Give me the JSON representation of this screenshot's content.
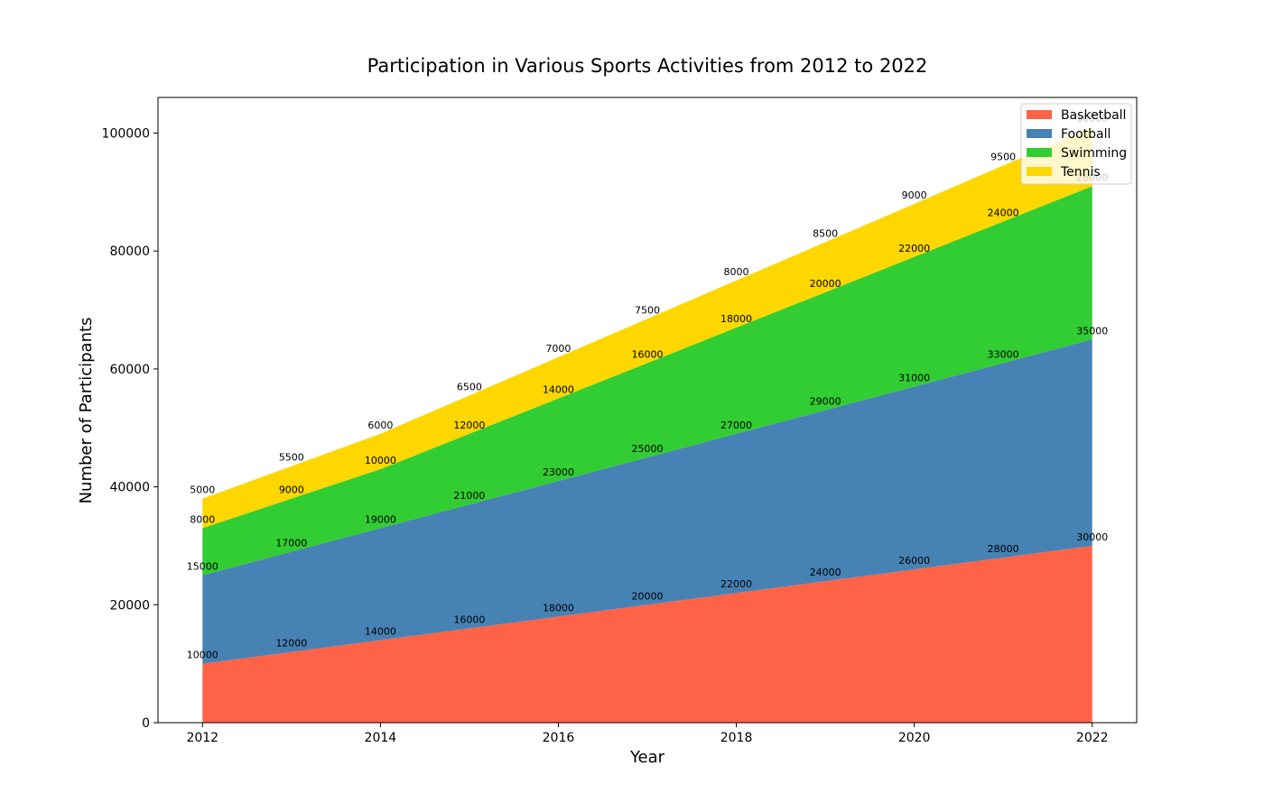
{
  "chart_data": {
    "type": "area",
    "stacked": true,
    "title": "Participation in Various Sports Activities from 2012 to 2022",
    "xlabel": "Year",
    "ylabel": "Number of Participants",
    "x": [
      2012,
      2013,
      2014,
      2015,
      2016,
      2017,
      2018,
      2019,
      2020,
      2021,
      2022
    ],
    "x_ticks": [
      2012,
      2014,
      2016,
      2018,
      2020,
      2022
    ],
    "xlim": [
      2011.5,
      2022.5
    ],
    "y_ticks": [
      0,
      20000,
      40000,
      60000,
      80000,
      100000
    ],
    "ylim": [
      0,
      106050
    ],
    "grid": false,
    "legend_position": "top-right",
    "series": [
      {
        "name": "Basketball",
        "color": "#FF6347",
        "values": [
          10000,
          12000,
          14000,
          16000,
          18000,
          20000,
          22000,
          24000,
          26000,
          28000,
          30000
        ]
      },
      {
        "name": "Football",
        "color": "#4682B4",
        "values": [
          15000,
          17000,
          19000,
          21000,
          23000,
          25000,
          27000,
          29000,
          31000,
          33000,
          35000
        ]
      },
      {
        "name": "Swimming",
        "color": "#32CD32",
        "values": [
          8000,
          9000,
          10000,
          12000,
          14000,
          16000,
          18000,
          20000,
          22000,
          24000,
          26000
        ]
      },
      {
        "name": "Tennis",
        "color": "#FFD700",
        "values": [
          5000,
          5500,
          6000,
          6500,
          7000,
          7500,
          8000,
          8500,
          9000,
          9500,
          10000
        ]
      }
    ]
  }
}
